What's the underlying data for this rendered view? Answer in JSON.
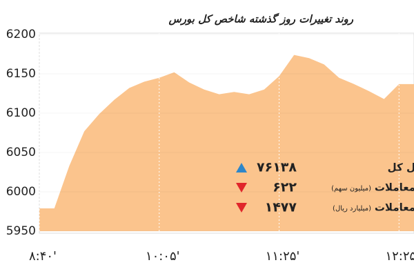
{
  "chart_data": {
    "type": "area",
    "title": "روند تغییرات روز گذشته شاخص کل بورس",
    "categories": [
      "۸:۴۰'",
      null,
      null,
      null,
      null,
      null,
      null,
      null,
      "۱۰:۰۵'",
      null,
      null,
      null,
      null,
      null,
      null,
      null,
      "۱۱:۲۵'",
      null,
      null,
      null,
      null,
      null,
      null,
      null,
      "۱۲:۲۵'",
      null
    ],
    "values": [
      5979,
      5979,
      6033,
      6077,
      6099,
      6117,
      6132,
      6140,
      6145,
      6152,
      6139,
      6130,
      6124,
      6127,
      6124,
      6130,
      6147,
      6174,
      6170,
      6162,
      6145,
      6137,
      6128,
      6118,
      6137,
      6137
    ],
    "color": "#fbc48d",
    "ylim": [
      5950,
      6200
    ],
    "yticks": [
      5950,
      6000,
      6050,
      6100,
      6150,
      6200
    ],
    "grid": true,
    "annotations": [
      {
        "label": "ل کل",
        "text": "۷۶۱۳۸",
        "direction": "up",
        "color": "#2e86c9"
      },
      {
        "label": "معاملات",
        "note": "(میلیون سهم)",
        "text": "۶۲۲",
        "direction": "down",
        "color": "#e0262b"
      },
      {
        "label": "معاملات",
        "note": "(میلیارد ریال)",
        "text": "۱۴۷۷",
        "direction": "down",
        "color": "#e0262b"
      }
    ]
  }
}
